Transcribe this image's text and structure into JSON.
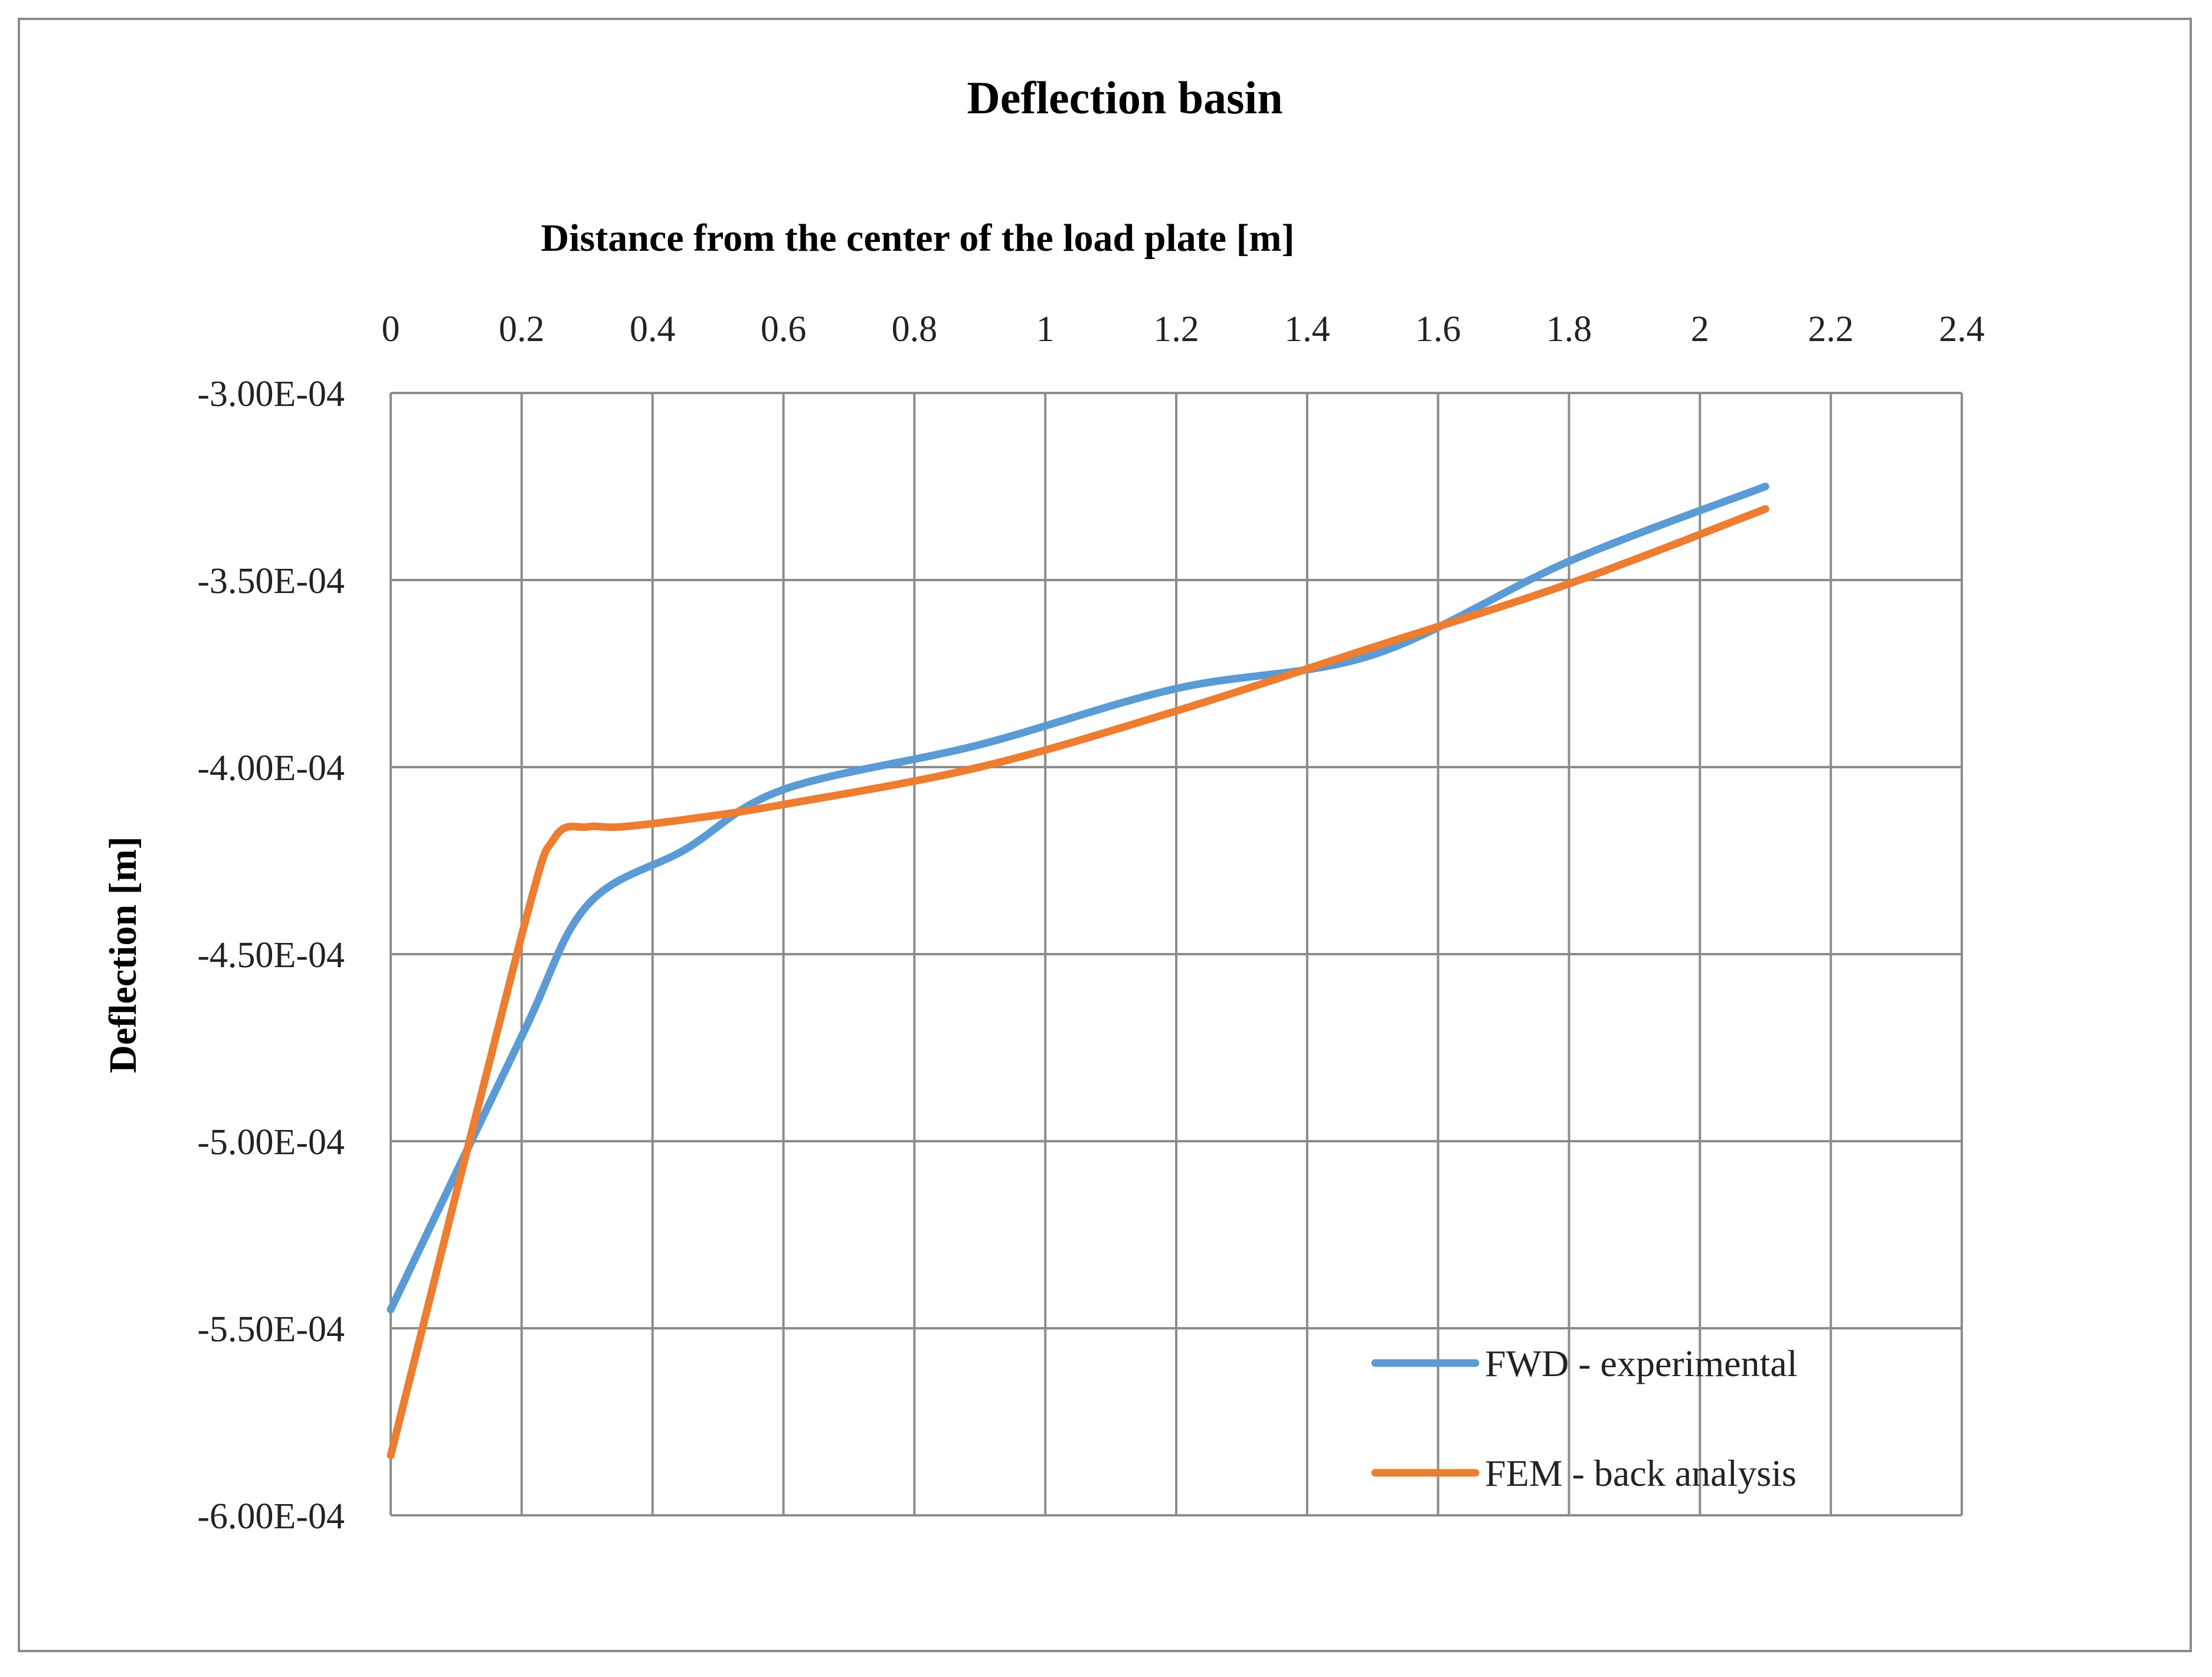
{
  "chart_data": {
    "type": "line",
    "title": "Deflection basin",
    "xlabel": "Distance from the center of the load plate [m]",
    "ylabel": "Deflection [m]",
    "xlim": [
      0,
      2.4
    ],
    "ylim": [
      -0.0006,
      -0.0003
    ],
    "x_ticks": [
      0,
      0.2,
      0.4,
      0.6,
      0.8,
      1,
      1.2,
      1.4,
      1.6,
      1.8,
      2,
      2.2,
      2.4
    ],
    "x_tick_labels": [
      "0",
      "0.2",
      "0.4",
      "0.6",
      "0.8",
      "1",
      "1.2",
      "1.4",
      "1.6",
      "1.8",
      "2",
      "2.2",
      "2.4"
    ],
    "y_ticks": [
      -0.0003,
      -0.00035,
      -0.0004,
      -0.00045,
      -0.0005,
      -0.00055,
      -0.0006
    ],
    "y_tick_labels": [
      "-3.00E-04",
      "-3.50E-04",
      "-4.00E-04",
      "-4.50E-04",
      "-5.00E-04",
      "-5.50E-04",
      "-6.00E-04"
    ],
    "x_axis_position": "top",
    "grid": true,
    "legend_position": "bottom-right",
    "series": [
      {
        "name": "FWD - experimental",
        "color": "#5b9bd5",
        "x": [
          0,
          0.2,
          0.3,
          0.45,
          0.6,
          0.9,
          1.2,
          1.5,
          1.8,
          2.1
        ],
        "y": [
          -0.000545,
          -0.000472,
          -0.000437,
          -0.000422,
          -0.000406,
          -0.000394,
          -0.000379,
          -0.00037,
          -0.000345,
          -0.000325
        ]
      },
      {
        "name": "FEM - back analysis",
        "color": "#ed7d31",
        "x": [
          0,
          0.2,
          0.25,
          0.3,
          0.35,
          0.45,
          0.6,
          0.9,
          1.2,
          1.5,
          1.8,
          2.1
        ],
        "y": [
          -0.000584,
          -0.000445,
          -0.000419,
          -0.000416,
          -0.000416,
          -0.000414,
          -0.00041,
          -0.0004,
          -0.000385,
          -0.000368,
          -0.000351,
          -0.000331
        ]
      }
    ]
  }
}
